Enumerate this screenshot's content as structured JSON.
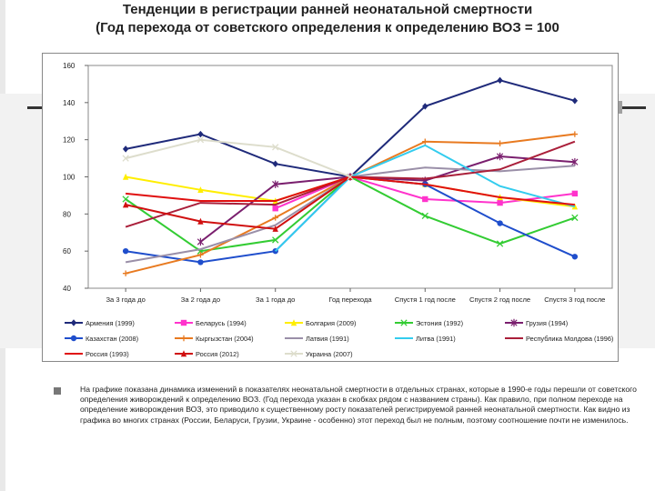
{
  "slide": {
    "title_line1": "Тенденции в регистрации ранней неонатальной смертности",
    "title_line2": "(Год перехода от советского определения к определению ВОЗ = 100",
    "body_text": "На графике показана динамика изменений в показателях неонатальной смертности в отдельных странах, которые в 1990-е годы перешли от советского определения живорождений к определению ВОЗ. (Год перехода указан в скобках рядом с названием страны). Как правило, при полном переходе на определение живорождения ВОЗ, это приводило к существенному росту показателей регистрируемой ранней неонатальной смертности. Как видно из графика во многих странах (России, Беларуси, Грузии, Украине - особенно) этот переход был не полным, поэтому соотношение почти не изменилось."
  },
  "chart_data": {
    "type": "line",
    "categories": [
      "За 3 года до",
      "За 2 года до",
      "За 1 года до",
      "Год перехода",
      "Спустя 1 год после",
      "Спустя 2 год после",
      "Спустя 3 год после"
    ],
    "ylim": [
      40,
      160
    ],
    "yticks": [
      40,
      60,
      80,
      100,
      120,
      140,
      160
    ],
    "grid": false,
    "legend_position": "bottom",
    "series": [
      {
        "name": "Армения (1999)",
        "color": "#1f2a7a",
        "marker": "diamond",
        "values": [
          115,
          123,
          107,
          100,
          138,
          152,
          141
        ]
      },
      {
        "name": "Беларусь (1994)",
        "color": "#ff33cc",
        "marker": "square",
        "values": [
          null,
          null,
          83,
          100,
          88,
          86,
          91
        ]
      },
      {
        "name": "Болгария (2009)",
        "color": "#ffee00",
        "marker": "triangle",
        "values": [
          100,
          93,
          87,
          100,
          96,
          89,
          84
        ]
      },
      {
        "name": "Эстония (1992)",
        "color": "#33cc33",
        "marker": "x",
        "values": [
          88,
          60,
          66,
          100,
          79,
          64,
          78
        ]
      },
      {
        "name": "Грузия (1994)",
        "color": "#7a1f6e",
        "marker": "star",
        "values": [
          null,
          65,
          96,
          100,
          98,
          111,
          108
        ]
      },
      {
        "name": "Казахстан (2008)",
        "color": "#1f4ecc",
        "marker": "circle",
        "values": [
          60,
          54,
          60,
          100,
          96,
          75,
          57
        ]
      },
      {
        "name": "Кыргызстан (2004)",
        "color": "#e87a20",
        "marker": "plus",
        "values": [
          48,
          58,
          78,
          100,
          119,
          118,
          123
        ]
      },
      {
        "name": "Латвия (1991)",
        "color": "#9a8fa8",
        "marker": "none",
        "values": [
          54,
          61,
          74,
          100,
          105,
          103,
          106
        ]
      },
      {
        "name": "Литва (1991)",
        "color": "#33ccee",
        "marker": "none",
        "values": [
          null,
          null,
          60,
          100,
          117,
          95,
          84
        ]
      },
      {
        "name": "Республика Молдова (1996)",
        "color": "#aa1f3a",
        "marker": "none",
        "values": [
          73,
          86,
          85,
          100,
          99,
          104,
          119
        ]
      },
      {
        "name": "Россия (1993)",
        "color": "#e01010",
        "marker": "none",
        "values": [
          91,
          87,
          87,
          100,
          96,
          89,
          85
        ]
      },
      {
        "name": "Россия (2012)",
        "color": "#d01010",
        "marker": "triangle",
        "values": [
          85,
          76,
          72,
          100,
          null,
          null,
          null
        ]
      },
      {
        "name": "Украина (2007)",
        "color": "#ddddcc",
        "marker": "x",
        "values": [
          110,
          120,
          116,
          100,
          null,
          null,
          null
        ]
      }
    ]
  }
}
